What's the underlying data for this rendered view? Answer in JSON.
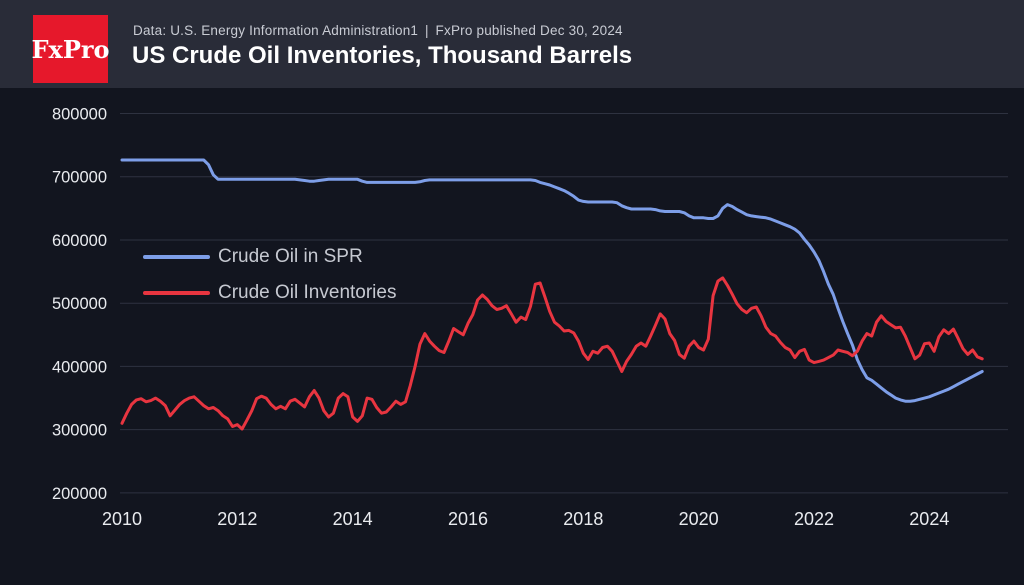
{
  "header": {
    "logo_text": "FxPro",
    "source_line": "Data: U.S. Energy Information Administration1  |  FxPro published Dec 30, 2024",
    "title": "US Crude Oil Inventories, Thousand Barrels"
  },
  "colors": {
    "header_bg": "#292c38",
    "page_bg": "#12151f",
    "logo_red": "#e6182b",
    "spr_blue": "#7d9ee8",
    "inventories_red": "#e83540",
    "grid": "#2e3240",
    "axis_text": "#e9ebef",
    "legend_text": "#c6c9d1"
  },
  "chart_data": {
    "type": "line",
    "title": "US Crude Oil Inventories, Thousand Barrels",
    "xlabel": "",
    "ylabel": "Thousand Barrels",
    "xlim": [
      2010,
      2025
    ],
    "ylim": [
      200000,
      800000
    ],
    "grid": "horizontal",
    "legend_position": "upper-left-inside",
    "x_start_year": 2010,
    "points_per_year": 12,
    "x_axis_ticks": [
      2010,
      2012,
      2014,
      2016,
      2018,
      2020,
      2022,
      2024
    ],
    "y_axis_ticks": [
      800000,
      700000,
      600000,
      500000,
      400000,
      300000,
      200000
    ],
    "series": [
      {
        "name": "Crude Oil in SPR",
        "color": "#7d9ee8",
        "values": [
          726500,
          726500,
          726500,
          726500,
          726500,
          726500,
          726500,
          726500,
          726500,
          726500,
          726500,
          726500,
          726500,
          726500,
          726500,
          726500,
          726500,
          726500,
          719000,
          703000,
          696000,
          696000,
          696000,
          696000,
          696000,
          696000,
          696000,
          696000,
          696000,
          696000,
          696000,
          696000,
          696000,
          696000,
          696000,
          696000,
          696000,
          695000,
          694000,
          693000,
          693000,
          694000,
          695000,
          696000,
          696000,
          696000,
          696000,
          696000,
          696000,
          696000,
          693000,
          691000,
          691000,
          691000,
          691000,
          691000,
          691000,
          691000,
          691000,
          691000,
          691000,
          691000,
          692000,
          694000,
          695000,
          695000,
          695000,
          695000,
          695000,
          695000,
          695000,
          695000,
          695000,
          695000,
          695000,
          695000,
          695000,
          695000,
          695000,
          695000,
          695000,
          695000,
          695000,
          695000,
          695000,
          695000,
          694000,
          691000,
          689000,
          687000,
          684000,
          681000,
          678000,
          674000,
          669000,
          663000,
          661000,
          660000,
          660000,
          660000,
          660000,
          660000,
          660000,
          659000,
          654000,
          651000,
          649000,
          649000,
          649000,
          649000,
          649000,
          648000,
          646000,
          645000,
          645000,
          645000,
          645000,
          643000,
          638000,
          635000,
          635000,
          635000,
          634000,
          634000,
          638000,
          650000,
          656000,
          653000,
          648000,
          644000,
          640000,
          638000,
          637000,
          636000,
          635000,
          633000,
          630000,
          627000,
          624000,
          621000,
          617000,
          611000,
          601000,
          592000,
          581000,
          568000,
          550000,
          530000,
          514000,
          492000,
          471000,
          452000,
          434000,
          411000,
          395000,
          382000,
          378000,
          372000,
          366000,
          360000,
          355000,
          350000,
          347000,
          345000,
          345000,
          346000,
          348000,
          350000,
          352000,
          355000,
          358000,
          361000,
          364000,
          368000,
          372000,
          376000,
          380000,
          384000,
          388000,
          392000
        ]
      },
      {
        "name": "Crude Oil Inventories",
        "color": "#e83540",
        "values": [
          310000,
          326000,
          340000,
          347000,
          349000,
          344000,
          346000,
          350000,
          345000,
          338000,
          322000,
          331000,
          340000,
          346000,
          350000,
          352000,
          345000,
          338000,
          333000,
          335000,
          330000,
          322000,
          317000,
          305000,
          308000,
          301000,
          315000,
          330000,
          349000,
          353000,
          350000,
          340000,
          333000,
          337000,
          333000,
          345000,
          348000,
          342000,
          336000,
          352000,
          362000,
          350000,
          330000,
          320000,
          326000,
          350000,
          357000,
          352000,
          320000,
          313000,
          322000,
          350000,
          348000,
          335000,
          326000,
          328000,
          336000,
          345000,
          340000,
          344000,
          370000,
          400000,
          435000,
          452000,
          440000,
          432000,
          425000,
          422000,
          440000,
          460000,
          455000,
          450000,
          468000,
          482000,
          505000,
          513000,
          506000,
          496000,
          490000,
          492000,
          496000,
          483000,
          470000,
          478000,
          474000,
          495000,
          530000,
          532000,
          510000,
          487000,
          470000,
          464000,
          456000,
          457000,
          453000,
          440000,
          421000,
          411000,
          424000,
          421000,
          430000,
          432000,
          424000,
          408000,
          392000,
          408000,
          419000,
          432000,
          437000,
          432000,
          448000,
          465000,
          483000,
          475000,
          452000,
          441000,
          419000,
          413000,
          432000,
          440000,
          430000,
          426000,
          443000,
          512000,
          535000,
          540000,
          528000,
          514000,
          499000,
          490000,
          485000,
          492000,
          494000,
          480000,
          462000,
          452000,
          448000,
          438000,
          430000,
          426000,
          414000,
          424000,
          427000,
          410000,
          406000,
          408000,
          410000,
          414000,
          418000,
          426000,
          424000,
          422000,
          417000,
          424000,
          440000,
          452000,
          448000,
          470000,
          480000,
          471000,
          466000,
          461000,
          462000,
          448000,
          430000,
          412000,
          418000,
          436000,
          437000,
          424000,
          447000,
          458000,
          452000,
          459000,
          444000,
          428000,
          419000,
          426000,
          415000,
          412000
        ]
      }
    ]
  }
}
